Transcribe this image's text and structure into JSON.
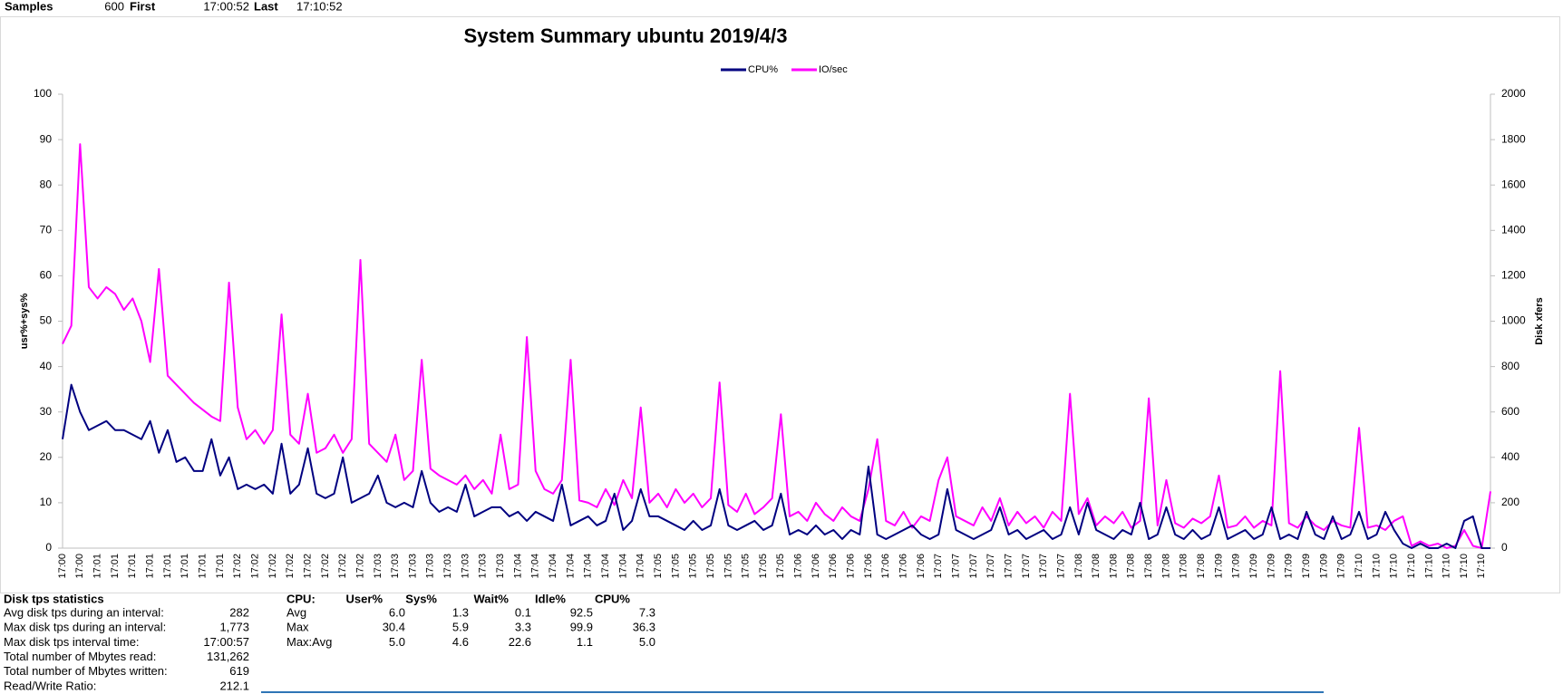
{
  "header": {
    "samples_label": "Samples",
    "samples": 600,
    "first_label": "First",
    "first": "17:00:52",
    "last_label": "Last",
    "last": "17:10:52"
  },
  "chart_data": {
    "type": "line",
    "title": "System Summary ubuntu  2019/4/3",
    "y_label": "usr%+sys%",
    "y2_label": "Disk xfers",
    "legend": "top",
    "grid": false,
    "ylim": [
      0,
      100
    ],
    "yticks": [
      0,
      10,
      20,
      30,
      40,
      50,
      60,
      70,
      80,
      90,
      100
    ],
    "y2lim": [
      0,
      2000
    ],
    "y2ticks": [
      0,
      200,
      400,
      600,
      800,
      1000,
      1200,
      1400,
      1600,
      1800,
      2000
    ],
    "categories": [
      "17:00",
      null,
      "17:00",
      null,
      "17:01",
      null,
      "17:01",
      null,
      "17:01",
      null,
      "17:01",
      null,
      "17:01",
      null,
      "17:01",
      null,
      "17:01",
      null,
      "17:01",
      null,
      "17:02",
      null,
      "17:02",
      null,
      "17:02",
      null,
      "17:02",
      null,
      "17:02",
      null,
      "17:02",
      null,
      "17:02",
      null,
      "17:02",
      null,
      "17:03",
      null,
      "17:03",
      null,
      "17:03",
      null,
      "17:03",
      null,
      "17:03",
      null,
      "17:03",
      null,
      "17:03",
      null,
      "17:03",
      null,
      "17:04",
      null,
      "17:04",
      null,
      "17:04",
      null,
      "17:04",
      null,
      "17:04",
      null,
      "17:04",
      null,
      "17:04",
      null,
      "17:04",
      null,
      "17:05",
      null,
      "17:05",
      null,
      "17:05",
      null,
      "17:05",
      null,
      "17:05",
      null,
      "17:05",
      null,
      "17:05",
      null,
      "17:05",
      null,
      "17:06",
      null,
      "17:06",
      null,
      "17:06",
      null,
      "17:06",
      null,
      "17:06",
      null,
      "17:06",
      null,
      "17:06",
      null,
      "17:06",
      null,
      "17:07",
      null,
      "17:07",
      null,
      "17:07",
      null,
      "17:07",
      null,
      "17:07",
      null,
      "17:07",
      null,
      "17:07",
      null,
      "17:07",
      null,
      "17:08",
      null,
      "17:08",
      null,
      "17:08",
      null,
      "17:08",
      null,
      "17:08",
      null,
      "17:08",
      null,
      "17:08",
      null,
      "17:08",
      null,
      "17:09",
      null,
      "17:09",
      null,
      "17:09",
      null,
      "17:09",
      null,
      "17:09",
      null,
      "17:09",
      null,
      "17:09",
      null,
      "17:09",
      null,
      "17:10",
      null,
      "17:10",
      null,
      "17:10",
      null,
      "17:10",
      null,
      "17:10",
      null,
      "17:10",
      null,
      "17:10",
      null,
      "17:10",
      null
    ],
    "series": [
      {
        "name": "CPU%",
        "color": "#000080",
        "values": [
          24,
          36,
          30,
          26,
          27,
          28,
          26,
          26,
          25,
          24,
          28,
          21,
          26,
          19,
          20,
          17,
          17,
          24,
          16,
          20,
          13,
          14,
          13,
          14,
          12,
          23,
          12,
          14,
          22,
          12,
          11,
          12,
          20,
          10,
          11,
          12,
          16,
          10,
          9,
          10,
          9,
          17,
          10,
          8,
          9,
          8,
          14,
          7,
          8,
          9,
          9,
          7,
          8,
          6,
          8,
          7,
          6,
          14,
          5,
          6,
          7,
          5,
          6,
          12,
          4,
          6,
          13,
          7,
          7,
          6,
          5,
          4,
          6,
          4,
          5,
          13,
          5,
          4,
          5,
          6,
          4,
          5,
          12,
          3,
          4,
          3,
          5,
          3,
          4,
          2,
          4,
          3,
          18,
          3,
          2,
          3,
          4,
          5,
          3,
          2,
          3,
          13,
          4,
          3,
          2,
          3,
          4,
          9,
          3,
          4,
          2,
          3,
          4,
          2,
          3,
          9,
          3,
          10,
          4,
          3,
          2,
          4,
          3,
          10,
          2,
          3,
          9,
          3,
          2,
          4,
          2,
          3,
          9,
          2,
          3,
          4,
          2,
          3,
          9,
          2,
          3,
          2,
          8,
          3,
          2,
          7,
          2,
          3,
          8,
          2,
          3,
          8,
          4,
          1,
          0,
          1,
          0,
          0,
          1,
          0,
          6,
          7,
          0,
          0
        ]
      },
      {
        "name": "IO/sec",
        "color": "#ff00ff",
        "axis": "y2",
        "values": [
          900,
          980,
          1780,
          1150,
          1100,
          1150,
          1120,
          1050,
          1100,
          1000,
          820,
          1230,
          760,
          720,
          680,
          640,
          610,
          580,
          560,
          1170,
          620,
          480,
          520,
          460,
          520,
          1030,
          500,
          460,
          680,
          420,
          440,
          500,
          420,
          480,
          1270,
          460,
          420,
          380,
          500,
          300,
          340,
          830,
          350,
          320,
          300,
          280,
          320,
          260,
          300,
          240,
          500,
          260,
          280,
          930,
          340,
          260,
          240,
          300,
          830,
          210,
          200,
          180,
          260,
          190,
          300,
          220,
          620,
          200,
          240,
          180,
          260,
          200,
          240,
          180,
          220,
          730,
          190,
          160,
          240,
          150,
          180,
          220,
          590,
          140,
          160,
          120,
          200,
          150,
          120,
          180,
          140,
          120,
          260,
          480,
          120,
          100,
          160,
          90,
          140,
          120,
          300,
          400,
          140,
          120,
          100,
          180,
          120,
          220,
          100,
          160,
          110,
          140,
          90,
          160,
          120,
          680,
          150,
          220,
          100,
          140,
          110,
          160,
          90,
          120,
          660,
          100,
          300,
          110,
          90,
          130,
          110,
          140,
          320,
          90,
          100,
          140,
          90,
          120,
          100,
          780,
          110,
          90,
          140,
          100,
          80,
          120,
          100,
          90,
          530,
          90,
          100,
          80,
          120,
          140,
          10,
          30,
          10,
          20,
          0,
          10,
          80,
          10,
          0,
          250
        ]
      }
    ]
  },
  "disk_stats": {
    "title": "Disk tps statistics",
    "rows": [
      [
        "Avg disk tps during an interval:",
        "282"
      ],
      [
        "Max disk tps during an interval:",
        "1,773"
      ],
      [
        "Max disk tps interval time:",
        "17:00:57"
      ],
      [
        "Total number of Mbytes read:",
        "131,262"
      ],
      [
        "Total number of Mbytes written:",
        "619"
      ],
      [
        "Read/Write Ratio:",
        "212.1"
      ]
    ]
  },
  "cpu_stats": {
    "header": [
      "CPU:",
      "User%",
      "Sys%",
      "Wait%",
      "Idle%",
      "CPU%"
    ],
    "rows": [
      [
        "Avg",
        "6.0",
        "1.3",
        "0.1",
        "92.5",
        "7.3"
      ],
      [
        "Max",
        "30.4",
        "5.9",
        "3.3",
        "99.9",
        "36.3"
      ],
      [
        "Max:Avg",
        "5.0",
        "4.6",
        "22.6",
        "1.1",
        "5.0"
      ]
    ]
  }
}
